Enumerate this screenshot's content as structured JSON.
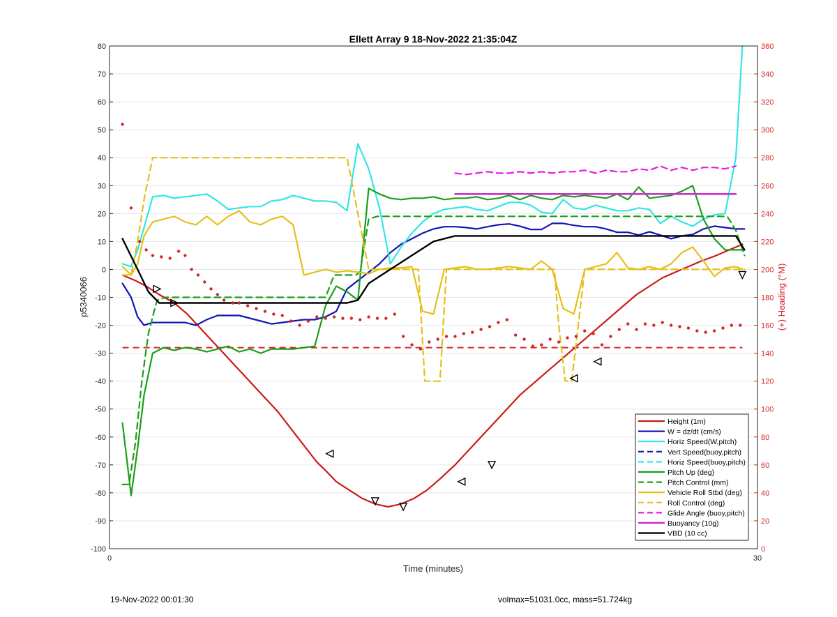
{
  "chart_data": {
    "type": "line",
    "title": "Ellett Array 9 18-Nov-2022 21:35:04Z",
    "xlabel": "Time (minutes)",
    "ylabel": "p5340066",
    "ylabel_right": "(+) Heading (°M)",
    "xlim": [
      0,
      30
    ],
    "ylim": [
      -100,
      80
    ],
    "ylim_right": [
      0,
      360
    ],
    "x_ticks": [
      0,
      30
    ],
    "y_ticks": [
      80,
      70,
      60,
      50,
      40,
      30,
      20,
      10,
      0,
      -10,
      -20,
      -30,
      -40,
      -50,
      -60,
      -70,
      -80,
      -90,
      -100
    ],
    "y_ticks_right": [
      360,
      340,
      320,
      300,
      280,
      260,
      240,
      220,
      200,
      180,
      160,
      140,
      120,
      100,
      80,
      60,
      40,
      20,
      0
    ],
    "grid": "horizontal",
    "legend_position": "bottom-right",
    "colors": {
      "axis_left": "#262626",
      "axis_right": "#d62728",
      "grid": "#e6e6e6"
    },
    "series": [
      {
        "name": "Height (1m)",
        "color": "#cc1a1a",
        "dash": "solid",
        "width": 2.2,
        "x": [
          0.6,
          1.2,
          1.7,
          2.3,
          3.0,
          3.6,
          4.2,
          4.8,
          5.4,
          6.0,
          6.6,
          7.2,
          7.8,
          8.4,
          9.0,
          9.6,
          10.0,
          10.5,
          11.1,
          11.7,
          12.3,
          12.9,
          13.5,
          14.1,
          14.7,
          15.3,
          16.0,
          16.6,
          17.2,
          17.8,
          18.4,
          19.0,
          19.6,
          20.2,
          20.8,
          21.4,
          22.0,
          22.6,
          23.2,
          23.8,
          24.4,
          25.0,
          25.6,
          26.2,
          26.8,
          27.4,
          28.1,
          28.7,
          29.3
        ],
        "y": [
          -2,
          -4,
          -6,
          -9,
          -12,
          -16,
          -21,
          -26,
          -31,
          -36,
          -41,
          -46,
          -51,
          -57,
          -63,
          -69,
          -72,
          -76,
          -79,
          -82,
          -84,
          -85,
          -84,
          -82,
          -79,
          -75,
          -70,
          -65,
          -60,
          -55,
          -50,
          -45,
          -41,
          -37,
          -33,
          -29,
          -25,
          -21,
          -17,
          -13,
          -9,
          -6,
          -3,
          -1,
          1,
          3,
          5,
          7,
          9
        ]
      },
      {
        "name": "W = dz/dt (cm/s)",
        "color": "#1414b4",
        "dash": "solid",
        "width": 2.2,
        "x": [
          0.6,
          1.0,
          1.3,
          1.6,
          2.0,
          2.5,
          3.0,
          3.5,
          4.0,
          4.5,
          5.0,
          5.5,
          6.0,
          6.5,
          7.0,
          7.5,
          8.0,
          8.5,
          9.0,
          9.5,
          10.0,
          10.5,
          11.0,
          11.5,
          12.0,
          12.5,
          13.0,
          13.5,
          14.0,
          14.5,
          15.0,
          15.5,
          16.0,
          16.5,
          17.0,
          17.5,
          18.0,
          18.5,
          19.0,
          19.5,
          20.0,
          20.5,
          21.0,
          21.5,
          22.0,
          22.5,
          23.0,
          23.5,
          24.0,
          24.5,
          25.0,
          25.5,
          26.0,
          26.5,
          27.0,
          27.5,
          28.0,
          28.5,
          29.0,
          29.4
        ],
        "y": [
          -5,
          -10,
          -17,
          -20,
          -19,
          -19,
          -19,
          -19,
          -20,
          -18,
          -16.5,
          -16.5,
          -16.5,
          -17.5,
          -18.5,
          -19.5,
          -19,
          -18.5,
          -18,
          -18,
          -17,
          -15,
          -7,
          -4,
          -1,
          2,
          6,
          9,
          11,
          13,
          14.5,
          15.3,
          15.3,
          15,
          14.5,
          15.3,
          16,
          16.3,
          15.5,
          14.3,
          14.3,
          16.5,
          16.5,
          15.8,
          15.3,
          15.3,
          14.5,
          13.3,
          13.3,
          12.3,
          13.5,
          12.3,
          11,
          12,
          12.5,
          14.5,
          15.5,
          15,
          14.5,
          14.5
        ]
      },
      {
        "name": "Horiz Speed(W,pitch)",
        "color": "#33e5e5",
        "dash": "solid",
        "width": 2.2,
        "x": [
          0.6,
          1.0,
          1.3,
          1.6,
          2.0,
          2.5,
          3.0,
          3.5,
          4.0,
          4.5,
          5.0,
          5.5,
          6.0,
          6.5,
          7.0,
          7.5,
          8.0,
          8.5,
          9.0,
          9.5,
          10.0,
          10.5,
          11.0,
          11.5,
          12.0,
          12.5,
          13.0,
          13.5,
          14.0,
          14.5,
          15.0,
          15.5,
          16.0,
          16.5,
          17.0,
          17.5,
          18.0,
          18.5,
          19.0,
          19.5,
          20.0,
          20.5,
          21.0,
          21.5,
          22.0,
          22.5,
          23.0,
          23.5,
          24.0,
          24.5,
          25.0,
          25.5,
          26.0,
          26.5,
          27.0,
          27.5,
          28.0,
          28.5,
          29.0,
          29.3
        ],
        "y": [
          2,
          1,
          7,
          15,
          26,
          26.5,
          25.5,
          26,
          26.5,
          27,
          24.5,
          21.5,
          22,
          22.5,
          22.5,
          24.5,
          25,
          26.5,
          25.5,
          24.5,
          24.5,
          24,
          21,
          45,
          36,
          22,
          2,
          8,
          13,
          17,
          20,
          21.5,
          22,
          22.5,
          21.5,
          21,
          22.5,
          24,
          24,
          23,
          20.5,
          20,
          25,
          22,
          21.5,
          23,
          22,
          21,
          21,
          22,
          21.5,
          16.5,
          19,
          17,
          15.5,
          18,
          19.5,
          20,
          40,
          80
        ]
      },
      {
        "name": "Vert Speed(buoy,pitch)",
        "color": "#1414b4",
        "dash": "dash",
        "width": 2.2,
        "x": [],
        "y": []
      },
      {
        "name": "Horiz Speed(buoy,pitch)",
        "color": "#33e5e5",
        "dash": "dash",
        "width": 2.2,
        "x": [],
        "y": []
      },
      {
        "name": "Pitch Up (deg)",
        "color": "#1a9e1a",
        "dash": "solid",
        "width": 2.2,
        "x": [
          0.6,
          1.0,
          1.3,
          1.6,
          2.0,
          2.5,
          3.0,
          3.5,
          4.0,
          4.5,
          5.0,
          5.5,
          6.0,
          6.5,
          7.0,
          7.5,
          8.0,
          8.5,
          9.0,
          9.5,
          10.0,
          10.5,
          11.0,
          11.5,
          12.0,
          12.5,
          13.0,
          13.5,
          14.0,
          14.5,
          15.0,
          15.5,
          16.0,
          16.5,
          17.0,
          17.5,
          18.0,
          18.5,
          19.0,
          19.5,
          20.0,
          20.5,
          21.0,
          21.5,
          22.0,
          22.5,
          23.0,
          23.5,
          24.0,
          24.5,
          25.0,
          25.5,
          26.0,
          26.5,
          27.0,
          27.5,
          28.0,
          28.5,
          29.0,
          29.4
        ],
        "y": [
          -55,
          -81,
          -64,
          -45,
          -30,
          -28,
          -29,
          -28,
          -28.5,
          -29.5,
          -28.5,
          -27.5,
          -29.5,
          -28.5,
          -30,
          -28.5,
          -28.5,
          -28.5,
          -28,
          -27.5,
          -13,
          -6,
          -8,
          -11,
          29,
          27,
          25.5,
          25,
          25.5,
          25.5,
          26,
          25,
          25.5,
          25.5,
          26,
          25,
          25.5,
          26.5,
          25,
          26.5,
          25.5,
          25,
          26.5,
          26,
          26.5,
          26,
          25.5,
          27,
          25,
          29.5,
          25.5,
          26,
          26.5,
          28,
          30,
          18,
          11,
          7,
          7,
          7
        ]
      },
      {
        "name": "Pitch Control (mm)",
        "color": "#1a9e1a",
        "dash": "dash",
        "width": 2.2,
        "x": [
          0.6,
          0.9,
          1.2,
          1.5,
          1.8,
          2.2,
          2.6,
          3.2,
          4.0,
          5.0,
          6.0,
          7.0,
          8.0,
          9.0,
          9.6,
          10.0,
          10.4,
          11.0,
          11.4,
          11.6,
          12.0,
          12.4,
          13.0,
          14.0,
          15.0,
          16.0,
          17.0,
          18.0,
          19.0,
          20.0,
          21.0,
          22.0,
          23.0,
          24.0,
          25.0,
          26.0,
          27.0,
          28.0,
          28.6,
          29.0,
          29.4
        ],
        "y": [
          -77,
          -77,
          -62,
          -40,
          -23,
          -11,
          -10,
          -10,
          -10,
          -10,
          -10,
          -10,
          -10,
          -10,
          -10,
          -10,
          -2,
          -2,
          -2,
          -1,
          18,
          19,
          19,
          19,
          19,
          19,
          19,
          19,
          19,
          19,
          19,
          19,
          19,
          19,
          19,
          19,
          19,
          19,
          19,
          14,
          5
        ]
      },
      {
        "name": "Vehicle Roll Stbd (deg)",
        "color": "#e5c01a",
        "dash": "solid",
        "width": 2.2,
        "x": [
          0.6,
          1.0,
          1.3,
          1.6,
          2.0,
          2.5,
          3.0,
          3.5,
          4.0,
          4.5,
          5.0,
          5.5,
          6.0,
          6.5,
          7.0,
          7.5,
          8.0,
          8.5,
          9.0,
          9.5,
          10.0,
          10.5,
          11.0,
          11.5,
          12.0,
          12.5,
          13.0,
          13.5,
          14.0,
          14.5,
          15.0,
          15.5,
          16.0,
          16.5,
          17.0,
          17.5,
          18.0,
          18.5,
          19.0,
          19.5,
          20.0,
          20.5,
          21.0,
          21.5,
          22.0,
          22.5,
          23.0,
          23.5,
          24.0,
          24.5,
          25.0,
          25.5,
          26.0,
          26.5,
          27.0,
          27.5,
          28.0,
          28.5,
          29.0,
          29.3
        ],
        "y": [
          1,
          -2,
          2,
          12,
          17,
          18,
          19,
          17,
          16,
          19,
          16,
          19,
          21,
          17,
          16,
          18,
          19,
          16,
          -2,
          -1,
          0,
          -1,
          -0.5,
          -1,
          -1.5,
          0,
          0.5,
          0.5,
          1,
          -15,
          -16,
          0,
          0.5,
          1,
          0,
          0,
          0.5,
          1,
          0.5,
          0,
          3,
          0,
          -14,
          -16,
          0,
          1,
          2,
          6,
          0.5,
          0,
          1,
          0,
          2,
          6,
          8,
          3,
          -2.5,
          0.5,
          1,
          0
        ]
      },
      {
        "name": "Roll Control (deg)",
        "color": "#e5c01a",
        "dash": "dash",
        "width": 2.2,
        "x": [
          0.6,
          1.0,
          1.3,
          1.6,
          2.0,
          2.3,
          3.0,
          4.0,
          5.0,
          6.0,
          7.0,
          8.0,
          9.0,
          10.0,
          11.0,
          12.0,
          13.0,
          14.0,
          14.3,
          14.6,
          15.0,
          15.3,
          15.6,
          16.0,
          17.0,
          18.0,
          19.0,
          20.0,
          20.6,
          20.8,
          21.1,
          21.4,
          21.7,
          22.0,
          22.5,
          23.0,
          24.0,
          25.0,
          26.0,
          27.0,
          28.0,
          29.0,
          29.4
        ],
        "y": [
          -2,
          -2,
          10,
          25,
          40,
          40,
          40,
          40,
          40,
          40,
          40,
          40,
          40,
          40,
          40,
          0,
          0,
          0,
          0,
          -40,
          -40,
          -40,
          0,
          0,
          0,
          0,
          0,
          0,
          0,
          -20,
          -40,
          -40,
          -20,
          0,
          0,
          0,
          0,
          0,
          0,
          0,
          0,
          0,
          0
        ]
      },
      {
        "name": "Glide Angle (buoy,pitch)",
        "color": "#e51ae5",
        "dash": "dash",
        "width": 2.2,
        "x": [
          16.0,
          16.5,
          17.0,
          17.5,
          18.0,
          18.5,
          19.0,
          19.5,
          20.0,
          20.5,
          21.0,
          21.5,
          22.0,
          22.5,
          23.0,
          23.5,
          24.0,
          24.5,
          25.0,
          25.5,
          26.0,
          26.5,
          27.0,
          27.5,
          28.0,
          28.5,
          29.0
        ],
        "y": [
          34.5,
          34,
          34.5,
          35,
          34.5,
          34.5,
          35,
          34.5,
          35,
          34.5,
          35,
          35,
          35.5,
          34.5,
          35.5,
          35,
          35,
          36,
          35.5,
          37,
          35.5,
          36.5,
          35.5,
          36.5,
          36.5,
          36,
          37
        ]
      },
      {
        "name": "Buoyancy (10g)",
        "color": "#cc33cc",
        "dash": "solid",
        "width": 2.6,
        "x": [
          16.0,
          29.0
        ],
        "y": [
          27,
          27
        ]
      },
      {
        "name": "VBD (10 cc)",
        "color": "#000000",
        "dash": "solid",
        "width": 2.4,
        "x": [
          0.6,
          1.3,
          1.8,
          2.3,
          3.0,
          4.0,
          6.0,
          8.0,
          10.0,
          11.0,
          11.5,
          12.0,
          13.0,
          14.0,
          15.0,
          16.0,
          18.0,
          20.0,
          22.0,
          24.0,
          26.0,
          28.0,
          29.0,
          29.4
        ],
        "y": [
          11,
          0,
          -8,
          -12,
          -12,
          -12,
          -12,
          -12,
          -12,
          -12,
          -11,
          -5,
          0,
          5,
          10,
          12,
          12,
          12,
          12,
          12,
          12,
          12,
          12,
          7
        ]
      }
    ],
    "heading_dashed": {
      "color": "#d62728",
      "x": [
        0.6,
        29.3
      ],
      "y_right": [
        144,
        144
      ]
    },
    "heading_dots": {
      "color": "#d62728",
      "x": [
        0.6,
        1.0,
        1.4,
        1.7,
        2.0,
        2.4,
        2.8,
        3.2,
        3.5,
        3.8,
        4.1,
        4.4,
        4.7,
        5.0,
        5.3,
        5.7,
        6.0,
        6.4,
        6.8,
        7.2,
        7.6,
        8.0,
        8.4,
        8.8,
        9.2,
        9.6,
        10.0,
        10.4,
        10.8,
        11.2,
        11.6,
        12.0,
        12.4,
        12.8,
        13.2,
        13.6,
        14.0,
        14.4,
        14.8,
        15.2,
        15.6,
        16.0,
        16.4,
        16.8,
        17.2,
        17.6,
        18.0,
        18.4,
        18.8,
        19.2,
        19.6,
        20.0,
        20.4,
        20.8,
        21.2,
        21.6,
        22.0,
        22.4,
        22.8,
        23.2,
        23.6,
        24.0,
        24.4,
        24.8,
        25.2,
        25.6,
        26.0,
        26.4,
        26.8,
        27.2,
        27.6,
        28.0,
        28.4,
        28.8,
        29.2
      ],
      "y_right": [
        304,
        244,
        220,
        214,
        210,
        209,
        208,
        213,
        210,
        200,
        196,
        191,
        186,
        182,
        178,
        176,
        176,
        174,
        172,
        170,
        168,
        167,
        163,
        160,
        163,
        166,
        165,
        166,
        165,
        165,
        164,
        166,
        165,
        165,
        168,
        152,
        146,
        143,
        148,
        150,
        152,
        152,
        154,
        155,
        157,
        159,
        162,
        164,
        153,
        150,
        145,
        146,
        150,
        148,
        151,
        152,
        156,
        154,
        146,
        152,
        157,
        161,
        157,
        161,
        160,
        162,
        160,
        159,
        158,
        156,
        155,
        156,
        158,
        160,
        160
      ]
    },
    "height_markers": {
      "x": [
        2.2,
        3.0,
        10.2,
        12.3,
        13.6,
        16.3,
        17.7,
        21.5,
        22.6,
        29.3
      ],
      "y": [
        -7,
        -12,
        -66,
        -83,
        -85,
        -76,
        -70,
        -39,
        -33,
        -2
      ],
      "dirs": [
        "right",
        "right",
        "left",
        "down",
        "down",
        "left",
        "down",
        "left",
        "left",
        "down"
      ]
    }
  },
  "footer": {
    "left": "19-Nov-2022 00:01:30",
    "right": "volmax=51031.0cc, mass=51.724kg"
  }
}
